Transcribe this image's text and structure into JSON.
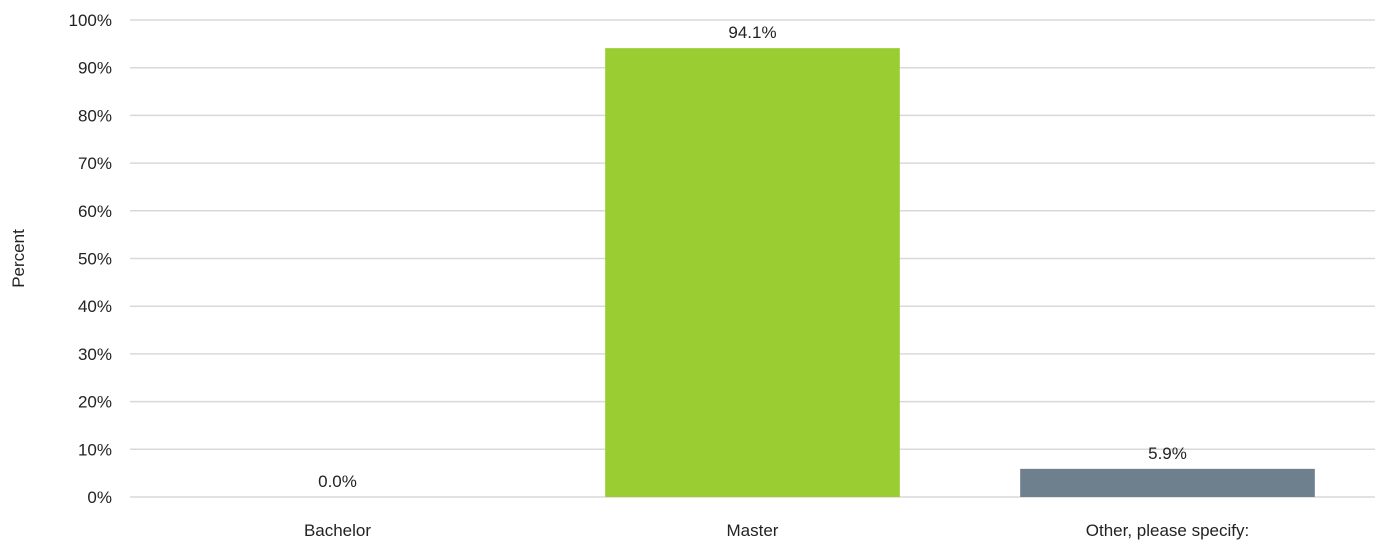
{
  "chart_data": {
    "type": "bar",
    "title": "",
    "xlabel": "",
    "ylabel": "Percent",
    "categories": [
      "Bachelor",
      "Master",
      "Other, please specify:"
    ],
    "values": [
      0.0,
      94.1,
      5.9
    ],
    "data_labels": [
      "0.0%",
      "94.1%",
      "5.9%"
    ],
    "bar_colors": [
      "#9ACD32",
      "#9ACD32",
      "#6E7F8E"
    ],
    "ylim": [
      0,
      100
    ],
    "yticks": [
      0,
      10,
      20,
      30,
      40,
      50,
      60,
      70,
      80,
      90,
      100
    ],
    "ytick_labels": [
      "0%",
      "10%",
      "20%",
      "30%",
      "40%",
      "50%",
      "60%",
      "70%",
      "80%",
      "90%",
      "100%"
    ],
    "grid": true,
    "legend": "none"
  }
}
